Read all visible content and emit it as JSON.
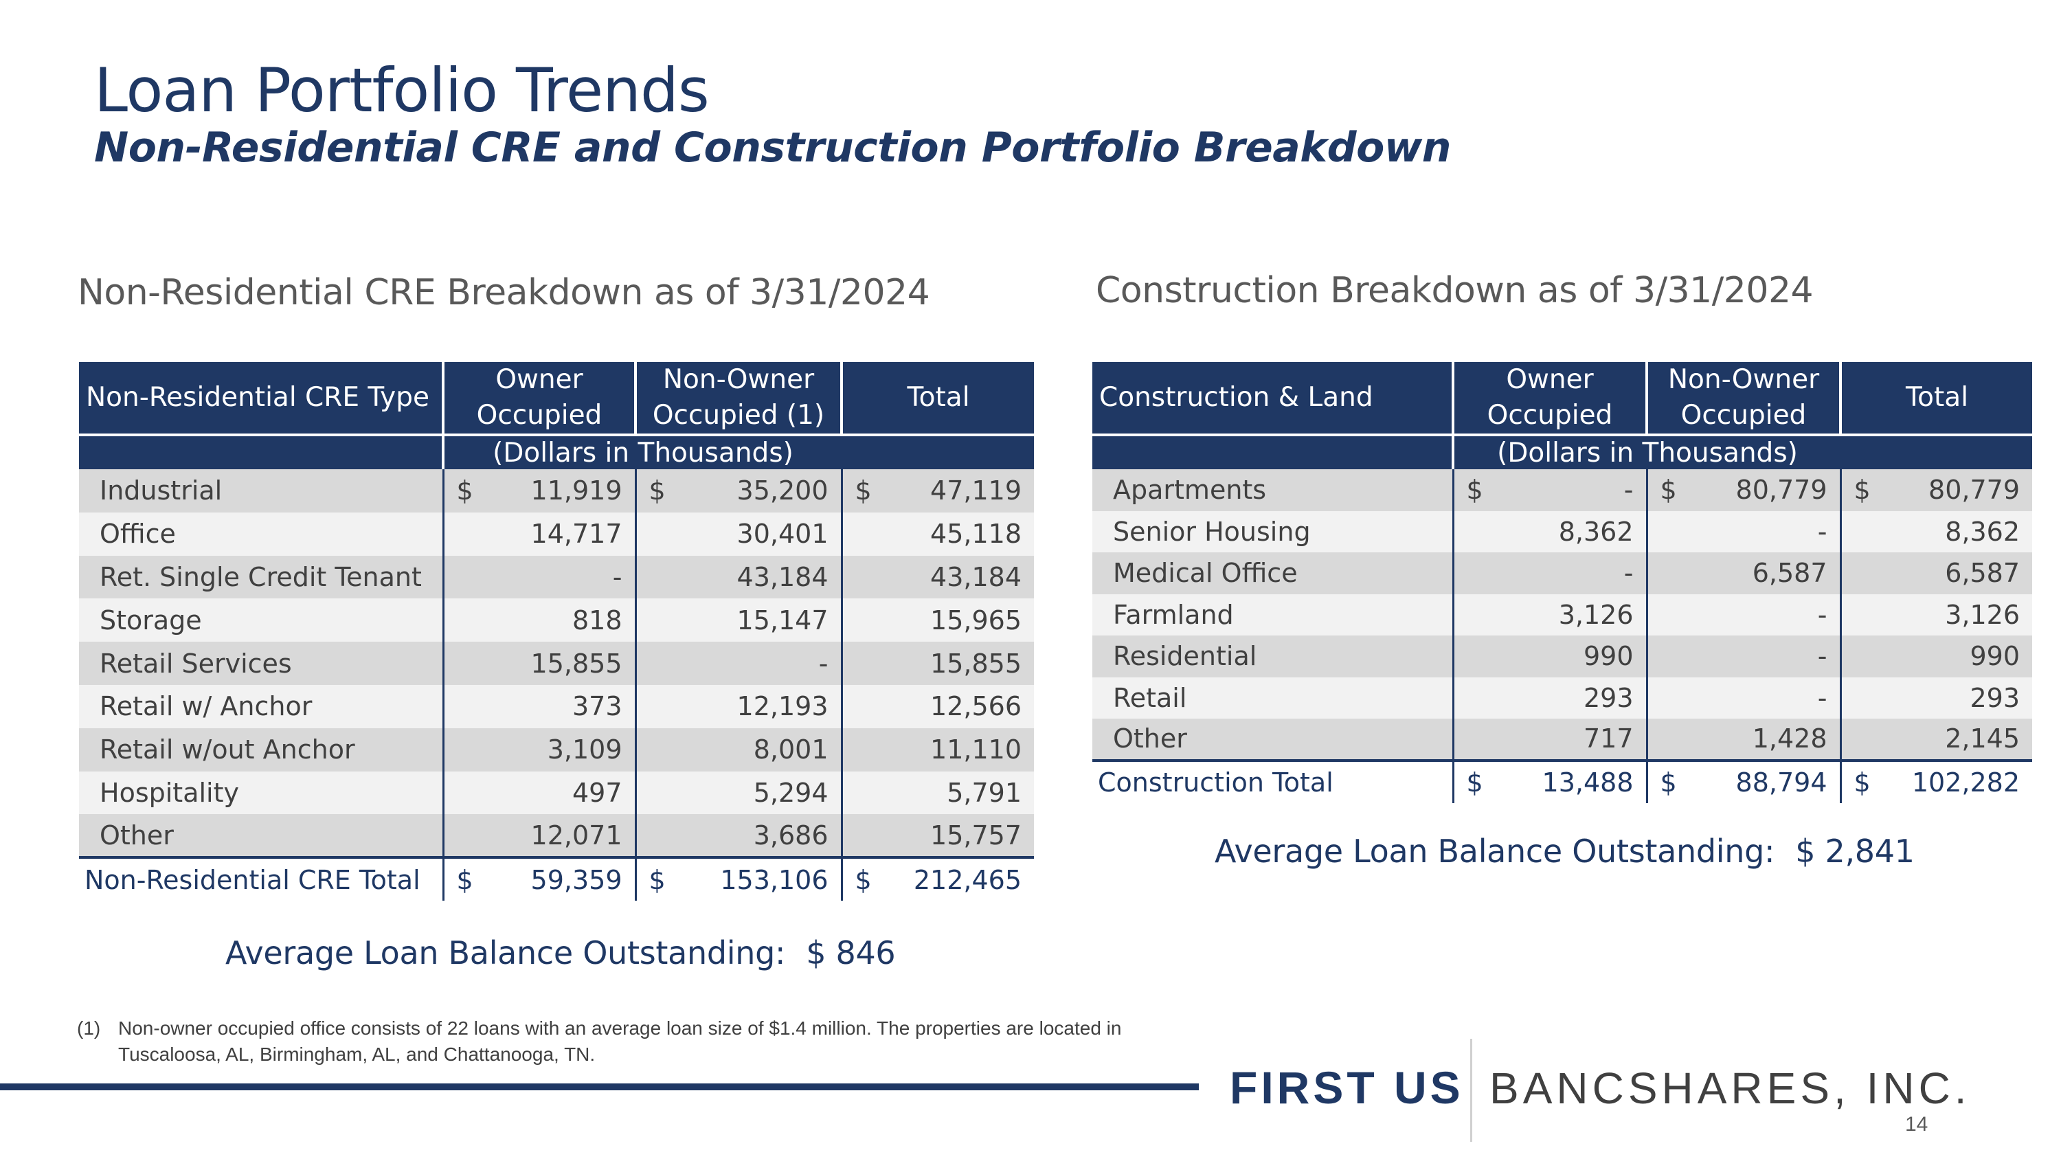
{
  "header": {
    "title": "Loan Portfolio Trends",
    "subtitle": "Non-Residential CRE and Construction Portfolio Breakdown"
  },
  "cre": {
    "heading": "Non-Residential CRE Breakdown as of 3/31/2024",
    "columns": [
      "Non-Residential CRE Type",
      "Owner Occupied",
      "Non-Owner Occupied (1)",
      "Total"
    ],
    "col_owner_1": "Owner",
    "col_owner_2": "Occupied",
    "col_nonowner_1": "Non-Owner",
    "col_nonowner_2": "Occupied (1)",
    "units": "(Dollars in Thousands)",
    "rows": [
      {
        "label": "Industrial",
        "cur": "$",
        "owner": "11,919",
        "nonowner": "35,200",
        "total": "47,119"
      },
      {
        "label": "Office",
        "cur": "",
        "owner": "14,717",
        "nonowner": "30,401",
        "total": "45,118"
      },
      {
        "label": "Ret. Single Credit Tenant",
        "cur": "",
        "owner": "-",
        "nonowner": "43,184",
        "total": "43,184"
      },
      {
        "label": "Storage",
        "cur": "",
        "owner": "818",
        "nonowner": "15,147",
        "total": "15,965"
      },
      {
        "label": "Retail Services",
        "cur": "",
        "owner": "15,855",
        "nonowner": "-",
        "total": "15,855"
      },
      {
        "label": "Retail w/ Anchor",
        "cur": "",
        "owner": "373",
        "nonowner": "12,193",
        "total": "12,566"
      },
      {
        "label": "Retail w/out Anchor",
        "cur": "",
        "owner": "3,109",
        "nonowner": "8,001",
        "total": "11,110"
      },
      {
        "label": "Hospitality",
        "cur": "",
        "owner": "497",
        "nonowner": "5,294",
        "total": "5,791"
      },
      {
        "label": "Other",
        "cur": "",
        "owner": "12,071",
        "nonowner": "3,686",
        "total": "15,757"
      }
    ],
    "total": {
      "label": "Non-Residential CRE Total",
      "cur": "$",
      "owner": "59,359",
      "nonowner": "153,106",
      "total": "212,465"
    },
    "avg_label": "Average Loan Balance Outstanding:",
    "avg_value": "$ 846"
  },
  "construction": {
    "heading": "Construction Breakdown as of 3/31/2024",
    "columns": [
      "Construction & Land",
      "Owner Occupied",
      "Non-Owner Occupied",
      "Total"
    ],
    "col_owner_1": "Owner",
    "col_owner_2": "Occupied",
    "col_nonowner_1": "Non-Owner",
    "col_nonowner_2": "Occupied",
    "units": "(Dollars in Thousands)",
    "rows": [
      {
        "label": "Apartments",
        "cur": "$",
        "owner": "-",
        "nonowner": "80,779",
        "total": "80,779"
      },
      {
        "label": "Senior Housing",
        "cur": "",
        "owner": "8,362",
        "nonowner": "-",
        "total": "8,362"
      },
      {
        "label": "Medical Office",
        "cur": "",
        "owner": "-",
        "nonowner": "6,587",
        "total": "6,587"
      },
      {
        "label": "Farmland",
        "cur": "",
        "owner": "3,126",
        "nonowner": "-",
        "total": "3,126"
      },
      {
        "label": "Residential",
        "cur": "",
        "owner": "990",
        "nonowner": "-",
        "total": "990"
      },
      {
        "label": "Retail",
        "cur": "",
        "owner": "293",
        "nonowner": "-",
        "total": "293"
      },
      {
        "label": "Other",
        "cur": "",
        "owner": "717",
        "nonowner": "1,428",
        "total": "2,145"
      }
    ],
    "total": {
      "label": "Construction Total",
      "cur": "$",
      "owner": "13,488",
      "nonowner": "88,794",
      "total": "102,282"
    },
    "avg_label": "Average Loan Balance Outstanding:",
    "avg_value": "$ 2,841"
  },
  "footnote": {
    "mark": "(1)",
    "text": "Non-owner occupied office consists of 22 loans with an average loan size of $1.4 million. The properties are located in Tuscaloosa, AL, Birmingham, AL, and Chattanooga, TN."
  },
  "branding": {
    "logo_first": "FIRST US",
    "logo_bancshares": "BANCSHARES, INC.",
    "page_number": "14"
  },
  "colors": {
    "navy": "#1f3864",
    "row_dark": "#d9d9d9",
    "row_light": "#f2f2f2"
  }
}
